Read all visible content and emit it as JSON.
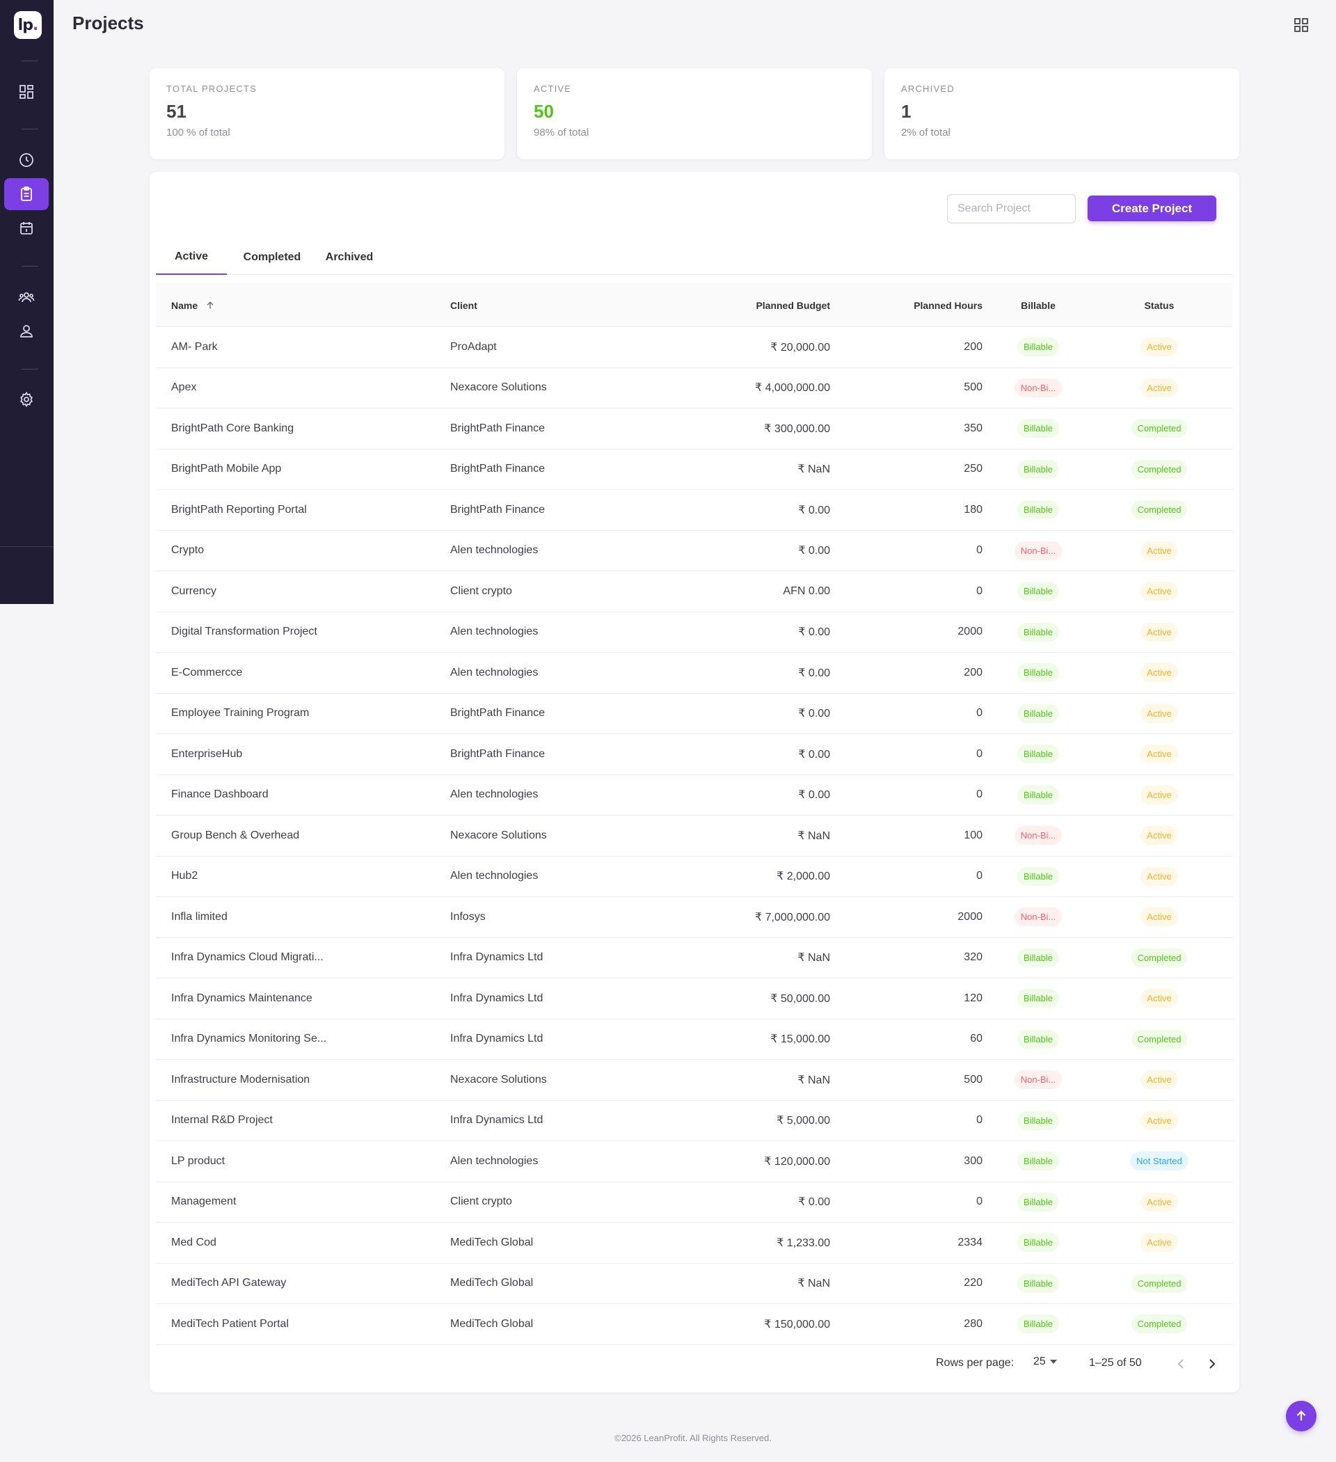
{
  "app": {
    "logo_text": "lp",
    "logo_dot": "."
  },
  "header": {
    "title": "Projects"
  },
  "sidebar": {
    "items": [
      {
        "name": "dashboard",
        "icon": "dashboard-icon",
        "active": false
      },
      {
        "name": "time",
        "icon": "clock-icon",
        "active": false
      },
      {
        "name": "projects",
        "icon": "clipboard-icon",
        "active": true
      },
      {
        "name": "calendar",
        "icon": "calendar-icon",
        "active": false
      },
      {
        "name": "team",
        "icon": "team-icon",
        "active": false
      },
      {
        "name": "user",
        "icon": "user-icon",
        "active": false
      },
      {
        "name": "settings",
        "icon": "gear-icon",
        "active": false
      }
    ]
  },
  "stats": [
    {
      "label": "TOTAL PROJECTS",
      "value": "51",
      "sub": "100 % of total"
    },
    {
      "label": "ACTIVE",
      "value": "50",
      "sub": "98% of total"
    },
    {
      "label": "ARCHIVED",
      "value": "1",
      "sub": "2% of total"
    }
  ],
  "toolbar": {
    "search_placeholder": "Search Project",
    "search_value": "",
    "create_label": "Create Project"
  },
  "tabs": [
    {
      "label": "Active",
      "active": true
    },
    {
      "label": "Completed",
      "active": false
    },
    {
      "label": "Archived",
      "active": false
    }
  ],
  "table": {
    "columns": {
      "name": "Name",
      "client": "Client",
      "budget": "Planned Budget",
      "hours": "Planned Hours",
      "billable": "Billable",
      "status": "Status"
    },
    "rows": [
      {
        "name": "AM- Park",
        "client": "ProAdapt",
        "budget": "₹ 20,000.00",
        "hours": "200",
        "billable": "Billable",
        "status": "Active"
      },
      {
        "name": "Apex",
        "client": "Nexacore Solutions",
        "budget": "₹ 4,000,000.00",
        "hours": "500",
        "billable": "Non-Bi...",
        "status": "Active"
      },
      {
        "name": "BrightPath Core Banking",
        "client": "BrightPath Finance",
        "budget": "₹ 300,000.00",
        "hours": "350",
        "billable": "Billable",
        "status": "Completed"
      },
      {
        "name": "BrightPath Mobile App",
        "client": "BrightPath Finance",
        "budget": "₹ NaN",
        "hours": "250",
        "billable": "Billable",
        "status": "Completed"
      },
      {
        "name": "BrightPath Reporting Portal",
        "client": "BrightPath Finance",
        "budget": "₹ 0.00",
        "hours": "180",
        "billable": "Billable",
        "status": "Completed"
      },
      {
        "name": "Crypto",
        "client": "Alen technologies",
        "budget": "₹ 0.00",
        "hours": "0",
        "billable": "Non-Bi...",
        "status": "Active"
      },
      {
        "name": "Currency",
        "client": "Client crypto",
        "budget": "AFN 0.00",
        "hours": "0",
        "billable": "Billable",
        "status": "Active"
      },
      {
        "name": "Digital Transformation Project",
        "client": "Alen technologies",
        "budget": "₹ 0.00",
        "hours": "2000",
        "billable": "Billable",
        "status": "Active"
      },
      {
        "name": "E-Commercce",
        "client": "Alen technologies",
        "budget": "₹ 0.00",
        "hours": "200",
        "billable": "Billable",
        "status": "Active"
      },
      {
        "name": "Employee Training Program",
        "client": "BrightPath Finance",
        "budget": "₹ 0.00",
        "hours": "0",
        "billable": "Billable",
        "status": "Active"
      },
      {
        "name": "EnterpriseHub",
        "client": "BrightPath Finance",
        "budget": "₹ 0.00",
        "hours": "0",
        "billable": "Billable",
        "status": "Active"
      },
      {
        "name": "Finance Dashboard",
        "client": "Alen technologies",
        "budget": "₹ 0.00",
        "hours": "0",
        "billable": "Billable",
        "status": "Active"
      },
      {
        "name": "Group Bench & Overhead",
        "client": "Nexacore Solutions",
        "budget": "₹ NaN",
        "hours": "100",
        "billable": "Non-Bi...",
        "status": "Active"
      },
      {
        "name": "Hub2",
        "client": "Alen technologies",
        "budget": "₹ 2,000.00",
        "hours": "0",
        "billable": "Billable",
        "status": "Active"
      },
      {
        "name": "Infla limited",
        "client": "Infosys",
        "budget": "₹ 7,000,000.00",
        "hours": "2000",
        "billable": "Non-Bi...",
        "status": "Active"
      },
      {
        "name": "Infra Dynamics Cloud Migrati...",
        "client": "Infra Dynamics Ltd",
        "budget": "₹ NaN",
        "hours": "320",
        "billable": "Billable",
        "status": "Completed"
      },
      {
        "name": "Infra Dynamics Maintenance",
        "client": "Infra Dynamics Ltd",
        "budget": "₹ 50,000.00",
        "hours": "120",
        "billable": "Billable",
        "status": "Active"
      },
      {
        "name": "Infra Dynamics Monitoring Se...",
        "client": "Infra Dynamics Ltd",
        "budget": "₹ 15,000.00",
        "hours": "60",
        "billable": "Billable",
        "status": "Completed"
      },
      {
        "name": "Infrastructure Modernisation",
        "client": "Nexacore Solutions",
        "budget": "₹ NaN",
        "hours": "500",
        "billable": "Non-Bi...",
        "status": "Active"
      },
      {
        "name": "Internal R&D Project",
        "client": "Infra Dynamics Ltd",
        "budget": "₹ 5,000.00",
        "hours": "0",
        "billable": "Billable",
        "status": "Active"
      },
      {
        "name": "LP product",
        "client": "Alen technologies",
        "budget": "₹ 120,000.00",
        "hours": "300",
        "billable": "Billable",
        "status": "Not Started"
      },
      {
        "name": "Management",
        "client": "Client crypto",
        "budget": "₹ 0.00",
        "hours": "0",
        "billable": "Billable",
        "status": "Active"
      },
      {
        "name": "Med Cod",
        "client": "MediTech Global",
        "budget": "₹ 1,233.00",
        "hours": "2334",
        "billable": "Billable",
        "status": "Active"
      },
      {
        "name": "MediTech API Gateway",
        "client": "MediTech Global",
        "budget": "₹ NaN",
        "hours": "220",
        "billable": "Billable",
        "status": "Completed"
      },
      {
        "name": "MediTech Patient Portal",
        "client": "MediTech Global",
        "budget": "₹ 150,000.00",
        "hours": "280",
        "billable": "Billable",
        "status": "Completed"
      }
    ]
  },
  "pagination": {
    "rows_label": "Rows per page:",
    "rows_value": "25",
    "range": "1–25 of 50"
  },
  "footer": {
    "text": "©2026 LeanProfit. All Rights Reserved."
  },
  "colors": {
    "accent": "#7b3fe4",
    "sidebar": "#201d35",
    "green": "#52c41a",
    "red": "#f5636b",
    "amber": "#f5b02a",
    "blue": "#2ca4e6"
  }
}
